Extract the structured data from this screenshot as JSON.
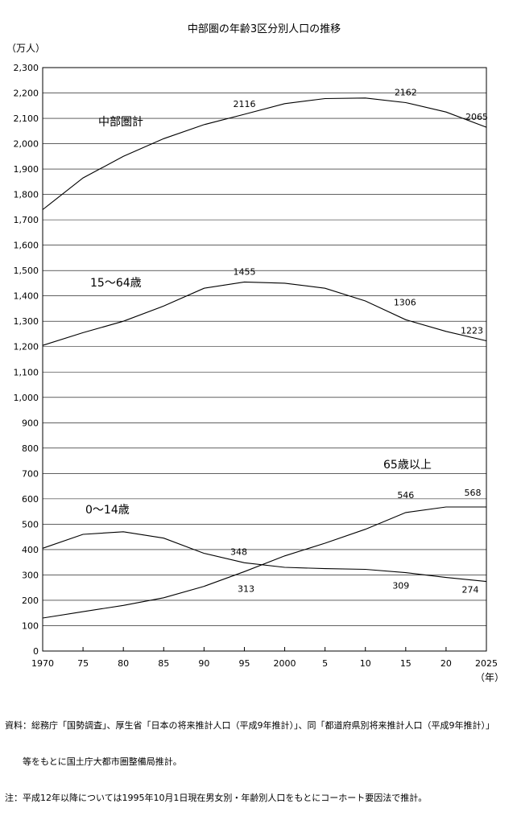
{
  "chart_data": {
    "type": "line",
    "title": "中部圏の年齢3区分別人口の推移",
    "ylabel": "（万人）",
    "xlabel": "（年）",
    "x_tick_labels": [
      "1970",
      "75",
      "80",
      "85",
      "90",
      "95",
      "2000",
      "5",
      "10",
      "15",
      "20",
      "2025"
    ],
    "x": [
      1970,
      1975,
      1980,
      1985,
      1990,
      1995,
      2000,
      2005,
      2010,
      2015,
      2020,
      2025
    ],
    "ylim": [
      0,
      2300
    ],
    "y_tick_step": 100,
    "y_tick_labels": [
      "0",
      "100",
      "200",
      "300",
      "400",
      "500",
      "600",
      "700",
      "800",
      "900",
      "1,000",
      "1,100",
      "1,200",
      "1,300",
      "1,400",
      "1,500",
      "1,600",
      "1,700",
      "1,800",
      "1,900",
      "2,000",
      "2,100",
      "2,200",
      "2,300"
    ],
    "grid": "horizontal",
    "series": [
      {
        "name": "中部圏計",
        "values": [
          1740,
          1865,
          1950,
          2020,
          2075,
          2116,
          2158,
          2178,
          2180,
          2162,
          2125,
          2065
        ],
        "labels": [
          {
            "x": 1995,
            "text": "2116"
          },
          {
            "x": 2015,
            "text": "2162"
          },
          {
            "x": 2025,
            "text": "2065"
          }
        ]
      },
      {
        "name": "15～64歳",
        "values": [
          1205,
          1255,
          1300,
          1360,
          1430,
          1455,
          1450,
          1430,
          1380,
          1306,
          1260,
          1223
        ],
        "labels": [
          {
            "x": 1995,
            "text": "1455"
          },
          {
            "x": 2015,
            "text": "1306"
          },
          {
            "x": 2025,
            "text": "1223"
          }
        ]
      },
      {
        "name": "65歳以上",
        "values": [
          130,
          155,
          180,
          210,
          255,
          313,
          375,
          425,
          480,
          546,
          568,
          568
        ],
        "labels": [
          {
            "x": 1995,
            "text": "313"
          },
          {
            "x": 2015,
            "text": "546"
          },
          {
            "x": 2025,
            "text": "568"
          }
        ]
      },
      {
        "name": "0～14歳",
        "values": [
          405,
          460,
          470,
          445,
          385,
          348,
          330,
          325,
          322,
          309,
          290,
          274
        ],
        "labels": [
          {
            "x": 1995,
            "text": "348"
          },
          {
            "x": 2015,
            "text": "309"
          },
          {
            "x": 2025,
            "text": "274"
          }
        ]
      }
    ]
  },
  "notes": [
    "資料：総務庁「国勢調査」、厚生省「日本の将来推計人口（平成9年推計）」、同「都道府県別将来推計人口（平成9年推計）」",
    "　　等をもとに国土庁大都市圏整備局推計。",
    "注：平成12年以降については1995年10月1日現在男女別・年齢別人口をもとにコーホート要因法で推計。"
  ]
}
